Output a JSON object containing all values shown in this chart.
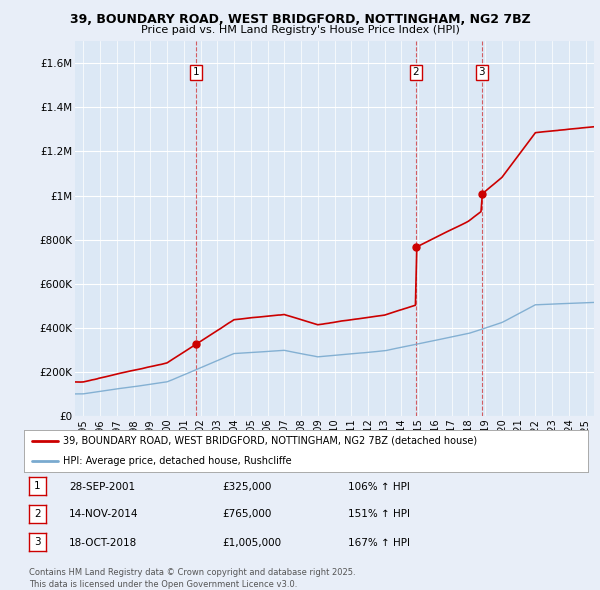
{
  "title1": "39, BOUNDARY ROAD, WEST BRIDGFORD, NOTTINGHAM, NG2 7BZ",
  "title2": "Price paid vs. HM Land Registry's House Price Index (HPI)",
  "background_color": "#e8eef8",
  "plot_bg_color": "#dce8f5",
  "grid_color": "#ffffff",
  "red_line_color": "#cc0000",
  "blue_line_color": "#7aaacf",
  "ylabel_values": [
    "£0",
    "£200K",
    "£400K",
    "£600K",
    "£800K",
    "£1M",
    "£1.2M",
    "£1.4M",
    "£1.6M"
  ],
  "ytick_values": [
    0,
    200000,
    400000,
    600000,
    800000,
    1000000,
    1200000,
    1400000,
    1600000
  ],
  "ylim": [
    0,
    1700000
  ],
  "sale_dates_num": [
    2001.74,
    2014.87,
    2018.79
  ],
  "sale_labels": [
    "1",
    "2",
    "3"
  ],
  "sale_prices": [
    325000,
    765000,
    1005000
  ],
  "legend_red": "39, BOUNDARY ROAD, WEST BRIDGFORD, NOTTINGHAM, NG2 7BZ (detached house)",
  "legend_blue": "HPI: Average price, detached house, Rushcliffe",
  "table_rows": [
    [
      "1",
      "28-SEP-2001",
      "£325,000",
      "106% ↑ HPI"
    ],
    [
      "2",
      "14-NOV-2014",
      "£765,000",
      "151% ↑ HPI"
    ],
    [
      "3",
      "18-OCT-2018",
      "£1,005,000",
      "167% ↑ HPI"
    ]
  ],
  "footnote": "Contains HM Land Registry data © Crown copyright and database right 2025.\nThis data is licensed under the Open Government Licence v3.0.",
  "xmin": 1994.5,
  "xmax": 2025.5
}
